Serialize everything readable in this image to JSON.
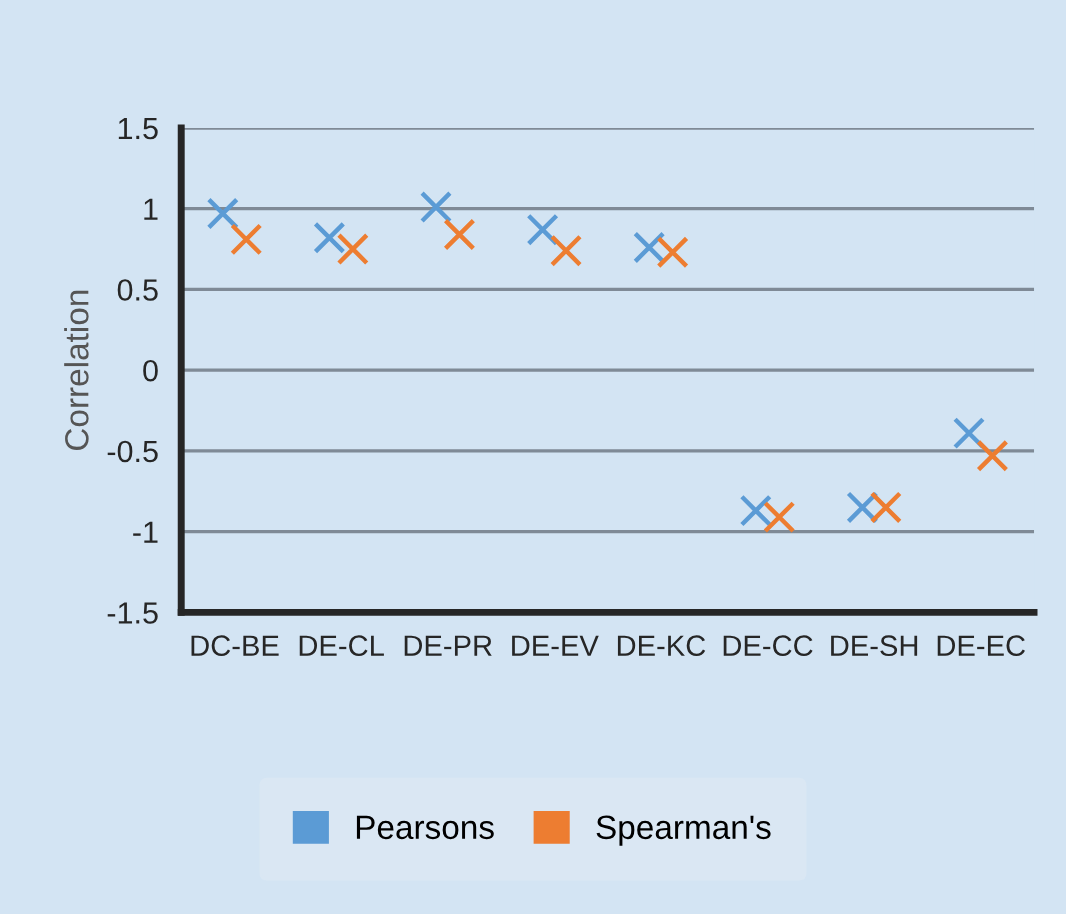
{
  "chart_data": {
    "type": "scatter",
    "ylabel": "Correlation",
    "categories": [
      "DC-BE",
      "DE-CL",
      "DE-PR",
      "DE-EV",
      "DE-KC",
      "DE-CC",
      "DE-SH",
      "DE-EC"
    ],
    "series": [
      {
        "name": "Pearsons",
        "color": "#5b9bd5",
        "values": [
          0.97,
          0.82,
          1.01,
          0.87,
          0.76,
          -0.87,
          -0.85,
          -0.39
        ]
      },
      {
        "name": "Spearman's",
        "color": "#ed7d31",
        "values": [
          0.81,
          0.75,
          0.84,
          0.74,
          0.73,
          -0.91,
          -0.85,
          -0.53
        ]
      }
    ],
    "ylim": [
      -1.5,
      1.5
    ],
    "yticks": [
      -1.5,
      -1,
      -0.5,
      0,
      0.5,
      1,
      1.5
    ],
    "grid": "y",
    "legend": "bottom",
    "marker": "cross"
  }
}
